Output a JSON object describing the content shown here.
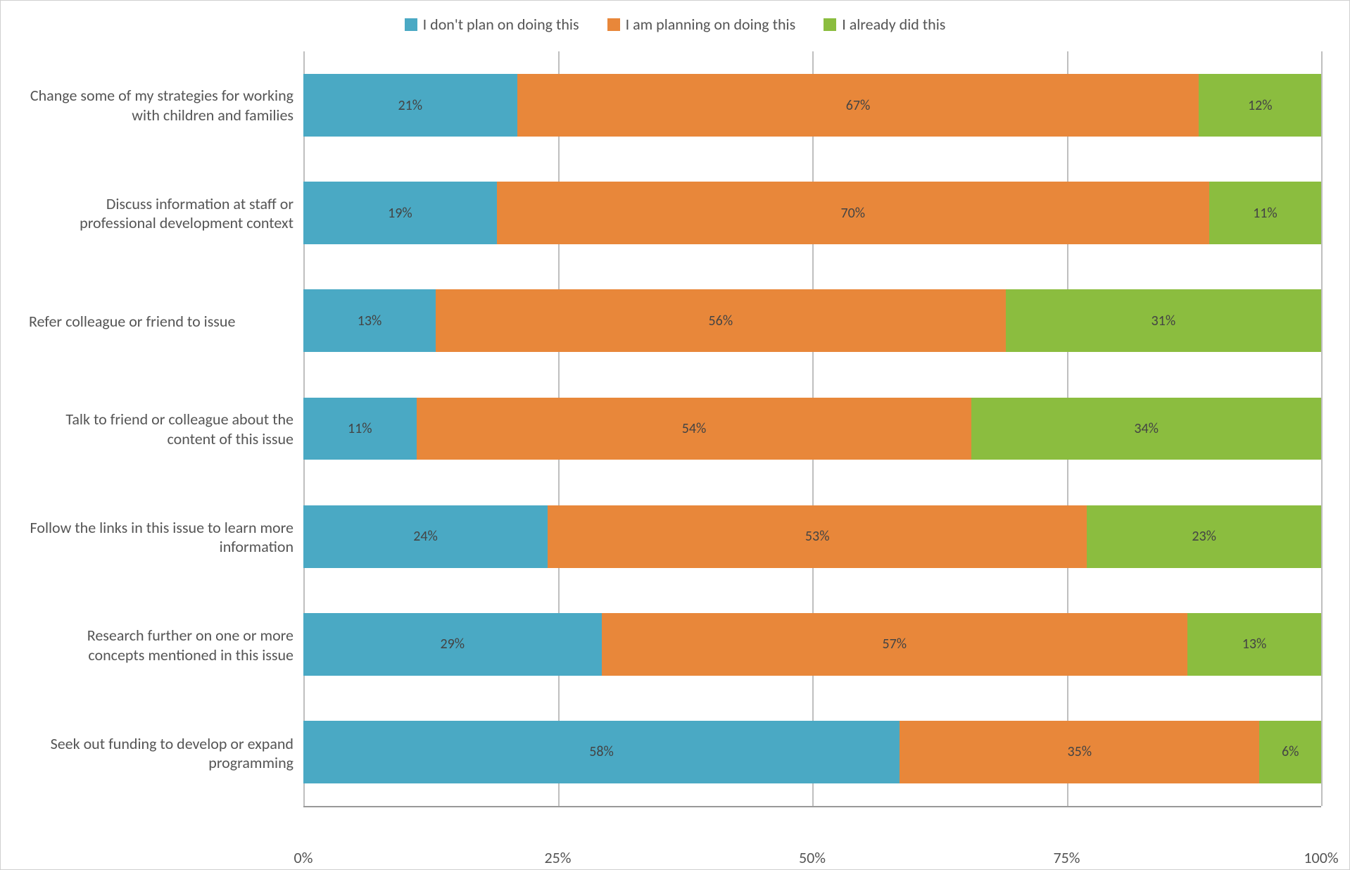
{
  "chart": {
    "type": "stacked-bar-horizontal",
    "colors": {
      "dont_plan": "#4aa9c4",
      "planning": "#e8873a",
      "already": "#8bbd3f",
      "grid": "#bfbfbf",
      "text": "#555555",
      "background": "#ffffff",
      "data_label": "#444444"
    },
    "font_family": "Calibri",
    "legend_fontsize": 22,
    "label_fontsize": 22,
    "data_label_fontsize": 20,
    "axis_fontsize": 22,
    "series": [
      {
        "key": "dont_plan",
        "label": "I don't plan on doing this"
      },
      {
        "key": "planning",
        "label": "I am planning on doing this"
      },
      {
        "key": "already",
        "label": "I already did this"
      }
    ],
    "categories": [
      {
        "label": "Change some of my strategies for working with children and families",
        "values": {
          "dont_plan": 21,
          "planning": 67,
          "already": 12
        }
      },
      {
        "label": "Discuss information at staff or professional development context",
        "values": {
          "dont_plan": 19,
          "planning": 70,
          "already": 11
        }
      },
      {
        "label": "Refer colleague or friend to issue",
        "values": {
          "dont_plan": 13,
          "planning": 56,
          "already": 31
        }
      },
      {
        "label": "Talk to friend or colleague about the content of this issue",
        "values": {
          "dont_plan": 11,
          "planning": 54,
          "already": 34
        }
      },
      {
        "label": "Follow the links in this issue to learn more information",
        "values": {
          "dont_plan": 24,
          "planning": 53,
          "already": 23
        }
      },
      {
        "label": "Research further on one or more concepts mentioned in this issue",
        "values": {
          "dont_plan": 29,
          "planning": 57,
          "already": 13
        }
      },
      {
        "label": "Seek out funding to develop or expand programming",
        "values": {
          "dont_plan": 58,
          "planning": 35,
          "already": 6
        }
      }
    ],
    "x_axis": {
      "min": 0,
      "max": 100,
      "ticks": [
        0,
        25,
        50,
        75,
        100
      ],
      "suffix": "%"
    },
    "bar_height_pct": 58
  }
}
